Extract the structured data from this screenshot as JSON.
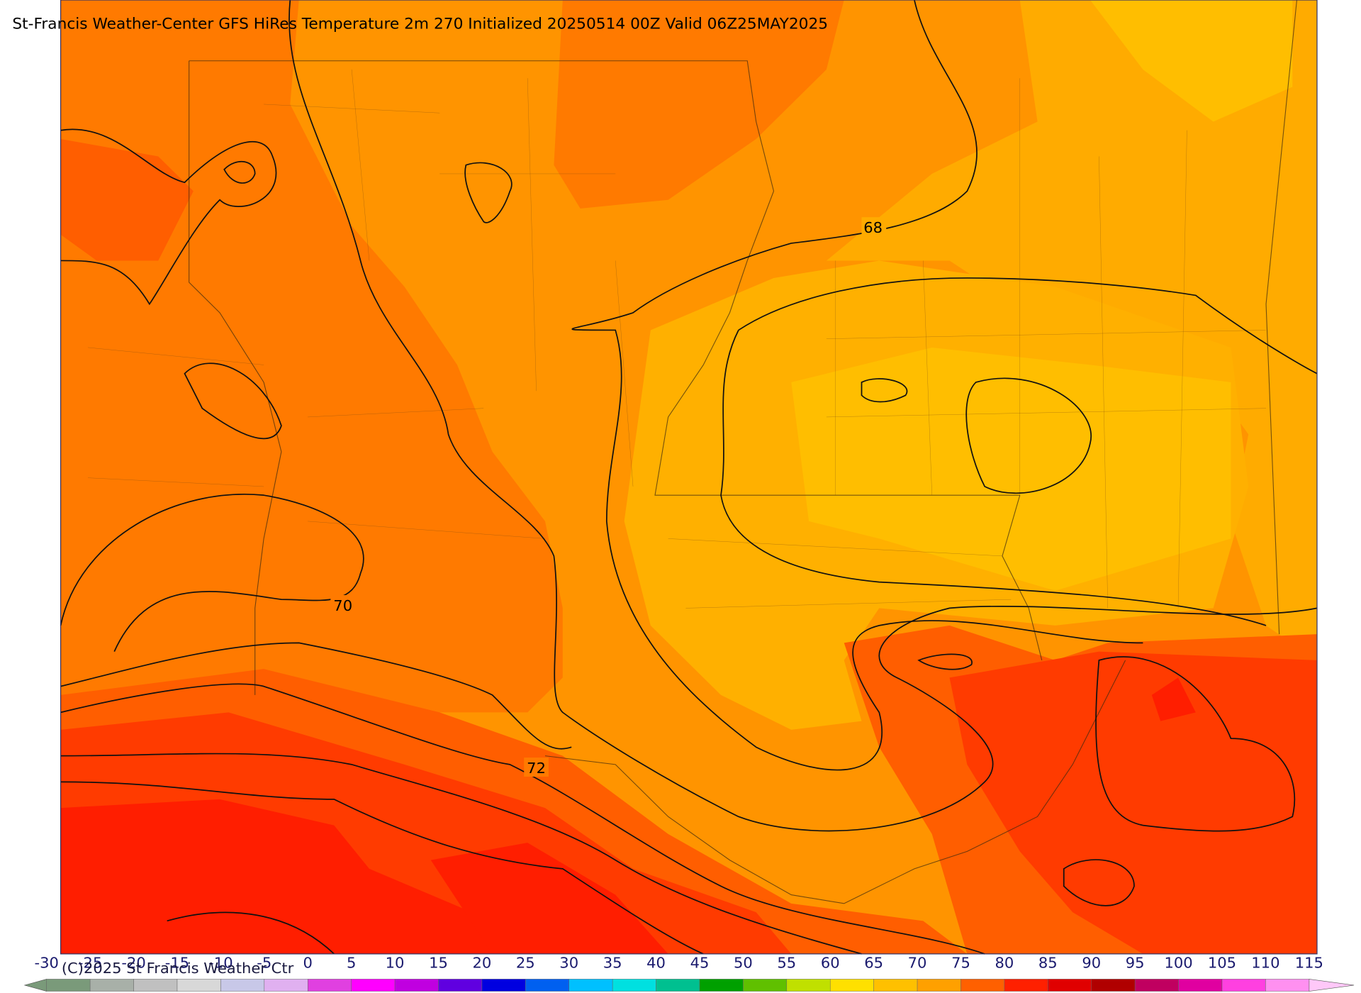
{
  "title": "St-Francis Weather-Center GFS HiRes Temperature 2m  270 Initialized 20250514 00Z Valid 06Z25MAY2025",
  "contour_labels": [
    "68",
    "70",
    "72"
  ],
  "copyright": "(C)2025 St Francis Weather Ctr",
  "colorbar": {
    "ticks": [
      -30,
      -25,
      -20,
      -15,
      -10,
      -5,
      0,
      5,
      10,
      15,
      20,
      25,
      30,
      35,
      40,
      45,
      50,
      55,
      60,
      65,
      70,
      75,
      80,
      85,
      90,
      95,
      100,
      105,
      110,
      115
    ],
    "colors": [
      "#7a9a7a",
      "#a8b0a8",
      "#c0c0c0",
      "#d8d8d8",
      "#c8c8e8",
      "#e0b0f0",
      "#e040e0",
      "#ff00ff",
      "#c000e0",
      "#6000e0",
      "#0000e0",
      "#0060f0",
      "#00c0ff",
      "#00e0e0",
      "#00c090",
      "#00a000",
      "#60c000",
      "#c0e000",
      "#ffe000",
      "#ffc000",
      "#ffa000",
      "#ff6000",
      "#ff2000",
      "#e00000",
      "#b00000",
      "#c00060",
      "#e000a0",
      "#ff40e0",
      "#ff90f0"
    ]
  }
}
